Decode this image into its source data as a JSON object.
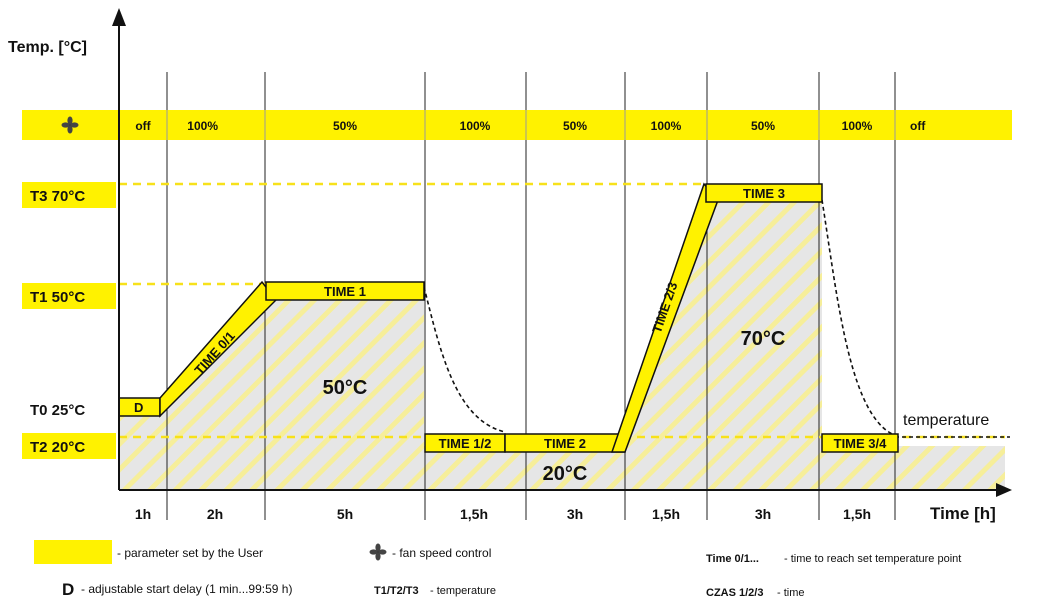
{
  "axes": {
    "y_label": "Temp. [°C]",
    "x_label": "Time [h]"
  },
  "colors": {
    "parameter_yellow": "#FFF200",
    "hatch": "#F6EE9A",
    "fill_gray": "#E6E6E6",
    "dashed_guide": "#F7E11A"
  },
  "fan_row": {
    "icon": "fan-icon",
    "cells": [
      "off",
      "100%",
      "50%",
      "100%",
      "50%",
      "100%",
      "50%",
      "100%",
      "off"
    ]
  },
  "temperatures": [
    "T3 70°C",
    "T1 50°C",
    "T0 25°C",
    "T2 20°C"
  ],
  "segments": {
    "delay": "D",
    "time_0_1": "TIME 0/1",
    "time_1": "TIME 1",
    "time_1_2": "TIME 1/2",
    "time_2": "TIME 2",
    "time_2_3": "TIME 2/3",
    "time_3": "TIME 3",
    "time_3_4": "TIME 3/4"
  },
  "plateau_labels": {
    "p50": "50°C",
    "p20": "20°C",
    "p70": "70°C"
  },
  "curve_label": "temperature",
  "durations": [
    "1h",
    "2h",
    "5h",
    "1,5h",
    "3h",
    "1,5h",
    "3h",
    "1,5h"
  ],
  "legend": {
    "parameter_text": "- parameter set by the User",
    "fan_text": "- fan speed control",
    "time_key": "Time 0/1...",
    "time_text": "- time to reach set temperature point",
    "delay_key": "D",
    "delay_text": "- adjustable start delay (1 min...99:59 h)",
    "temp_key": "T1/T2/T3",
    "temp_text": "- temperature",
    "czas_key": "CZAS 1/2/3",
    "czas_text": "- time"
  }
}
